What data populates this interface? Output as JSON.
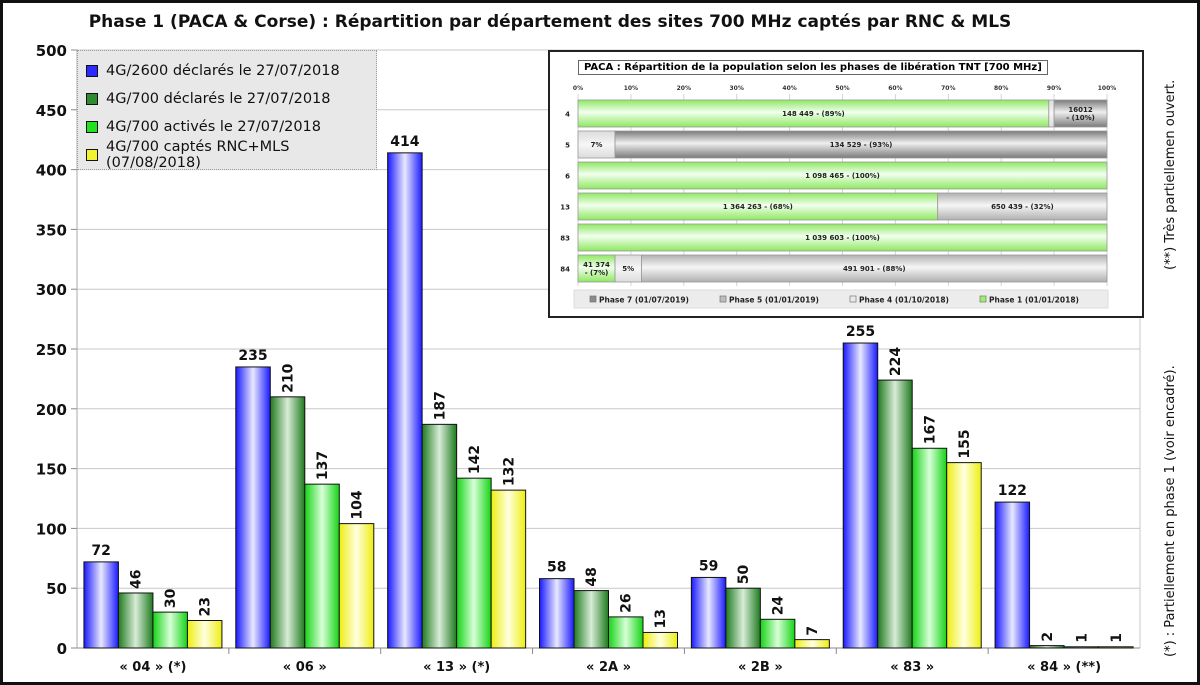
{
  "chart_data": [
    {
      "type": "bar",
      "title": "Phase 1 (PACA & Corse) : Répartition par département des sites 700 MHz captés par RNC & MLS",
      "xlabel": "",
      "ylabel": "",
      "ylim": [
        0,
        500
      ],
      "yticks": [
        0,
        50,
        100,
        150,
        200,
        250,
        300,
        350,
        400,
        450,
        500
      ],
      "grid": true,
      "legend_position": "top-left",
      "categories": [
        "« 04 » (*)",
        "« 06 »",
        "« 13 » (*)",
        "« 2A »",
        "« 2B »",
        "« 83 »",
        "« 84 » (**)"
      ],
      "series": [
        {
          "name": "4G/2600 déclarés le 27/07/2018",
          "color": "#2b2bff",
          "values": [
            72,
            235,
            414,
            58,
            59,
            255,
            122
          ]
        },
        {
          "name": "4G/700 déclarés le 27/07/2018",
          "color": "#2e8b2e",
          "values": [
            46,
            210,
            187,
            48,
            50,
            224,
            2
          ]
        },
        {
          "name": "4G/700 activés le 27/07/2018",
          "color": "#22e022",
          "values": [
            30,
            137,
            142,
            26,
            24,
            167,
            1
          ]
        },
        {
          "name": "4G/700 captés RNC+MLS (07/08/2018)",
          "color": "#f2f230",
          "values": [
            23,
            104,
            132,
            13,
            7,
            155,
            1
          ]
        }
      ],
      "label_orientation": [
        "horizontal",
        "vertical",
        "vertical",
        "vertical"
      ]
    },
    {
      "type": "bar",
      "orientation": "horizontal-stacked-100",
      "title": "PACA : Répartition de la population selon les phases de libération TNT [700 MHz]",
      "xlim": [
        0,
        100
      ],
      "xticks": [
        "0%",
        "10%",
        "20%",
        "30%",
        "40%",
        "50%",
        "60%",
        "70%",
        "80%",
        "90%",
        "100%"
      ],
      "categories": [
        "4",
        "5",
        "6",
        "13",
        "83",
        "84"
      ],
      "legend_position": "bottom",
      "legend": [
        {
          "name": "Phase 7 (01/07/2019)",
          "color": "#8a8a8a"
        },
        {
          "name": "Phase 5 (01/01/2019)",
          "color": "#bdbdbd"
        },
        {
          "name": "Phase 4 (01/10/2018)",
          "color": "#ebebeb"
        },
        {
          "name": "Phase 1 (01/01/2018)",
          "color": "#9af06a"
        }
      ],
      "rows": [
        {
          "category": "4",
          "segments": [
            {
              "phase": "Phase 1 (01/01/2018)",
              "percent": 89,
              "label": "148 449 - (89%)"
            },
            {
              "phase": "Phase 4 (01/10/2018)",
              "percent": 1,
              "label": ""
            },
            {
              "phase": "Phase 7 (01/07/2019)",
              "percent": 10,
              "label": "16012\n- (10%)"
            }
          ]
        },
        {
          "category": "5",
          "segments": [
            {
              "phase": "Phase 4 (01/10/2018)",
              "percent": 7,
              "label": "7%"
            },
            {
              "phase": "Phase 7 (01/07/2019)",
              "percent": 93,
              "label": "134 529 - (93%)"
            }
          ]
        },
        {
          "category": "6",
          "segments": [
            {
              "phase": "Phase 1 (01/01/2018)",
              "percent": 100,
              "label": "1 098 465 - (100%)"
            }
          ]
        },
        {
          "category": "13",
          "segments": [
            {
              "phase": "Phase 1 (01/01/2018)",
              "percent": 68,
              "label": "1 364 263 - (68%)"
            },
            {
              "phase": "Phase 5 (01/01/2019)",
              "percent": 32,
              "label": "650 439 - (32%)"
            }
          ]
        },
        {
          "category": "83",
          "segments": [
            {
              "phase": "Phase 1 (01/01/2018)",
              "percent": 100,
              "label": "1 039 603 - (100%)"
            }
          ]
        },
        {
          "category": "84",
          "segments": [
            {
              "phase": "Phase 1 (01/01/2018)",
              "percent": 7,
              "label": "41 374\n- (7%)"
            },
            {
              "phase": "Phase 4 (01/10/2018)",
              "percent": 5,
              "label": "5%"
            },
            {
              "phase": "Phase 5 (01/01/2019)",
              "percent": 88,
              "label": "491 901 - (88%)"
            }
          ]
        }
      ]
    }
  ],
  "notes": {
    "very_partial": "(**) Très partiellemen ouvert.",
    "partial": "(*) : Partiellement en phase 1 (voir encadré)."
  }
}
